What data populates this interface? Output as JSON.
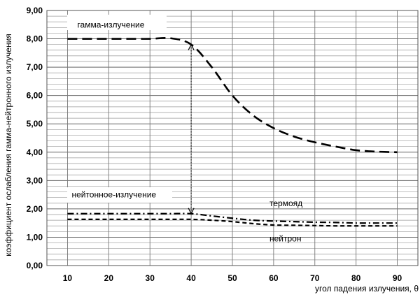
{
  "chart_data": {
    "type": "line",
    "title": "",
    "xlabel": "угол падения излучения, θ",
    "ylabel": "коэффициент ослабления гамма-нейтронного излучения",
    "x": [
      10,
      15,
      20,
      25,
      30,
      35,
      40,
      45,
      50,
      55,
      60,
      65,
      70,
      75,
      80,
      85,
      90
    ],
    "xticks": [
      "10",
      "20",
      "30",
      "40",
      "50",
      "60",
      "70",
      "80",
      "90"
    ],
    "xtick_values": [
      10,
      20,
      30,
      40,
      50,
      60,
      70,
      80,
      90
    ],
    "yticks": [
      "0,00",
      "1,00",
      "2,00",
      "3,00",
      "4,00",
      "5,00",
      "6,00",
      "7,00",
      "8,00",
      "9,00"
    ],
    "ytick_values": [
      0,
      1,
      2,
      3,
      4,
      5,
      6,
      7,
      8,
      9
    ],
    "xlim": [
      5,
      95
    ],
    "ylim": [
      0,
      9
    ],
    "minor_grid_step": 0.2,
    "series": [
      {
        "name": "гамма-излучение",
        "dash": "long-dash",
        "values": [
          8.0,
          8.0,
          8.0,
          8.0,
          8.0,
          8.02,
          7.8,
          7.0,
          6.0,
          5.3,
          4.85,
          4.55,
          4.35,
          4.2,
          4.07,
          4.02,
          4.0
        ]
      },
      {
        "name": "термояд",
        "dash": "dash-dot",
        "values": [
          1.83,
          1.83,
          1.83,
          1.83,
          1.83,
          1.83,
          1.83,
          1.75,
          1.67,
          1.6,
          1.57,
          1.55,
          1.53,
          1.52,
          1.5,
          1.5,
          1.5
        ]
      },
      {
        "name": "нейтрон",
        "dash": "short-dash",
        "values": [
          1.63,
          1.63,
          1.63,
          1.63,
          1.63,
          1.63,
          1.63,
          1.6,
          1.55,
          1.48,
          1.43,
          1.42,
          1.41,
          1.4,
          1.4,
          1.4,
          1.4
        ]
      }
    ],
    "annotations": [
      {
        "text": "гамма-излучение",
        "x": 10,
        "y": 8.5
      },
      {
        "text": "нейтонное-излучение",
        "x": 10,
        "y": 2.5
      },
      {
        "text": "термояд",
        "x": 59,
        "y": 2.2
      },
      {
        "text": "нейтрон",
        "x": 59,
        "y": 0.95
      }
    ],
    "arrow": {
      "x": 40,
      "from_y": 7.8,
      "to_y": 1.83,
      "style": "dotted",
      "bidirectional": true
    },
    "grid": true,
    "legend": "none"
  }
}
